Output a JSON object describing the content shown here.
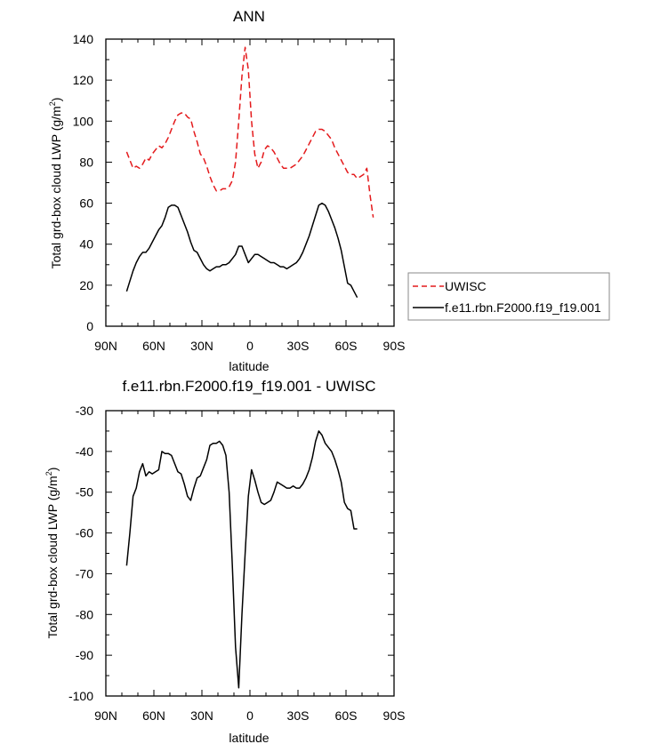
{
  "chart_data": [
    {
      "type": "line",
      "title": "ANN",
      "xlabel": "latitude",
      "ylabel": "Total grd-box cloud LWP (g/m²)",
      "ylabel_main": "Total grd-box cloud LWP (g/m",
      "ylabel_sup": "2",
      "ylabel_end": ")",
      "xlim": [
        90,
        -90
      ],
      "ylim": [
        0,
        140
      ],
      "x_ticks": [
        90,
        60,
        30,
        0,
        -30,
        -60,
        -90
      ],
      "x_tick_labels": [
        "90N",
        "60N",
        "30N",
        "0",
        "30S",
        "60S",
        "90S"
      ],
      "y_ticks": [
        0,
        20,
        40,
        60,
        80,
        100,
        120,
        140
      ],
      "y_tick_labels": [
        "0",
        "20",
        "40",
        "60",
        "80",
        "100",
        "120",
        "140"
      ],
      "legend": {
        "placement": "right",
        "entries": [
          {
            "label": "UWISC",
            "color": "#e41a1c",
            "dash": "dashed"
          },
          {
            "label": "f.e11.rbn.F2000.f19_f19.001",
            "color": "#000000",
            "dash": "solid"
          }
        ]
      },
      "series": [
        {
          "name": "UWISC",
          "color": "#e41a1c",
          "dash": "dashed",
          "x": [
            77,
            75,
            73,
            71,
            69,
            67,
            65,
            63,
            61,
            59,
            57,
            55,
            53,
            51,
            49,
            47,
            45,
            43,
            41,
            39,
            37,
            35,
            33,
            31,
            29,
            27,
            25,
            23,
            21,
            19,
            17,
            15,
            13,
            11,
            9,
            7,
            5,
            3,
            1,
            -1,
            -3,
            -5,
            -7,
            -9,
            -11,
            -13,
            -15,
            -17,
            -19,
            -21,
            -23,
            -25,
            -27,
            -29,
            -31,
            -33,
            -35,
            -37,
            -39,
            -41,
            -43,
            -45,
            -47,
            -49,
            -51,
            -53,
            -55,
            -57,
            -59,
            -61,
            -63,
            -65,
            -67,
            -69,
            -71,
            -73,
            -75,
            -77
          ],
          "values": [
            85,
            81,
            77,
            78,
            77,
            79,
            82,
            81,
            84,
            86,
            88,
            87,
            89,
            92,
            96,
            100,
            103,
            104,
            104,
            102,
            101,
            95,
            90,
            84,
            82,
            78,
            73,
            69,
            66,
            66,
            67,
            67,
            68,
            71,
            80,
            100,
            122,
            136,
            125,
            100,
            84,
            77,
            80,
            86,
            88,
            87,
            85,
            82,
            79,
            77,
            77,
            77,
            78,
            79,
            81,
            83,
            86,
            89,
            92,
            95,
            96,
            96,
            95,
            93,
            91,
            87,
            84,
            81,
            78,
            75,
            74,
            74,
            72,
            73,
            74,
            77,
            64,
            53
          ]
        },
        {
          "name": "f.e11.rbn.F2000.f19_f19.001",
          "color": "#000000",
          "dash": "solid",
          "x": [
            77,
            75,
            73,
            71,
            69,
            67,
            65,
            63,
            61,
            59,
            57,
            55,
            53,
            51,
            49,
            47,
            45,
            43,
            41,
            39,
            37,
            35,
            33,
            31,
            29,
            27,
            25,
            23,
            21,
            19,
            17,
            15,
            13,
            11,
            9,
            7,
            5,
            3,
            1,
            -1,
            -3,
            -5,
            -7,
            -9,
            -11,
            -13,
            -15,
            -17,
            -19,
            -21,
            -23,
            -25,
            -27,
            -29,
            -31,
            -33,
            -35,
            -37,
            -39,
            -41,
            -43,
            -45,
            -47,
            -49,
            -51,
            -53,
            -55,
            -57,
            -59,
            -61,
            -63,
            -65,
            -67
          ],
          "values": [
            17,
            22,
            27,
            31,
            34,
            36,
            36,
            38,
            41,
            44,
            47,
            49,
            53,
            58,
            59,
            59,
            58,
            54,
            50,
            46,
            41,
            37,
            36,
            33,
            30,
            28,
            27,
            28,
            29,
            29,
            30,
            30,
            31,
            33,
            35,
            39,
            39,
            35,
            31,
            33,
            35,
            35,
            34,
            33,
            32,
            31,
            31,
            30,
            29,
            29,
            28,
            29,
            30,
            31,
            33,
            36,
            40,
            44,
            49,
            54,
            59,
            60,
            59,
            56,
            52,
            48,
            43,
            37,
            29,
            21,
            20,
            17,
            14
          ]
        }
      ]
    },
    {
      "type": "line",
      "title": "f.e11.rbn.F2000.f19_f19.001 - UWISC",
      "xlabel": "latitude",
      "ylabel": "Total grd-box cloud LWP (g/m²)",
      "ylabel_main": "Total grd-box cloud LWP (g/m",
      "ylabel_sup": "2",
      "ylabel_end": ")",
      "xlim": [
        90,
        -90
      ],
      "ylim": [
        -100,
        -30
      ],
      "x_ticks": [
        90,
        60,
        30,
        0,
        -30,
        -60,
        -90
      ],
      "x_tick_labels": [
        "90N",
        "60N",
        "30N",
        "0",
        "30S",
        "60S",
        "90S"
      ],
      "y_ticks": [
        -100,
        -90,
        -80,
        -70,
        -60,
        -50,
        -40,
        -30
      ],
      "y_tick_labels": [
        "-100",
        "-90",
        "-80",
        "-70",
        "-60",
        "-50",
        "-40",
        "-30"
      ],
      "series": [
        {
          "name": "f.e11.rbn.F2000.f19_f19.001 - UWISC",
          "color": "#000000",
          "dash": "solid",
          "x": [
            77,
            75,
            73,
            71,
            69,
            67,
            65,
            63,
            61,
            59,
            57,
            55,
            53,
            51,
            49,
            47,
            45,
            43,
            41,
            39,
            37,
            35,
            33,
            31,
            29,
            27,
            25,
            23,
            21,
            19,
            17,
            15,
            13,
            11,
            9,
            7,
            5,
            3,
            1,
            -1,
            -3,
            -5,
            -7,
            -9,
            -11,
            -13,
            -15,
            -17,
            -19,
            -21,
            -23,
            -25,
            -27,
            -29,
            -31,
            -33,
            -35,
            -37,
            -39,
            -41,
            -43,
            -45,
            -47,
            -49,
            -51,
            -53,
            -55,
            -57,
            -59,
            -61,
            -63,
            -65,
            -67
          ],
          "values": [
            -68,
            -60,
            -51,
            -49,
            -45,
            -43,
            -46,
            -45,
            -45.5,
            -45,
            -44.5,
            -40,
            -40.5,
            -40.5,
            -41,
            -43,
            -45,
            -45.5,
            -48,
            -51,
            -52,
            -49,
            -46.5,
            -46,
            -44,
            -42,
            -38.5,
            -38,
            -38,
            -37.5,
            -38.5,
            -41,
            -50,
            -68,
            -88,
            -98,
            -80,
            -65,
            -51,
            -44.5,
            -47,
            -50,
            -52.5,
            -53,
            -52.5,
            -52,
            -50,
            -47.5,
            -48,
            -48.5,
            -49,
            -49,
            -48.5,
            -49,
            -49,
            -48,
            -46.5,
            -44.5,
            -41.5,
            -37.5,
            -35,
            -36,
            -38,
            -39,
            -40,
            -42,
            -44.5,
            -47.5,
            -52.5,
            -54,
            -54.5,
            -59,
            -59
          ]
        }
      ]
    }
  ]
}
